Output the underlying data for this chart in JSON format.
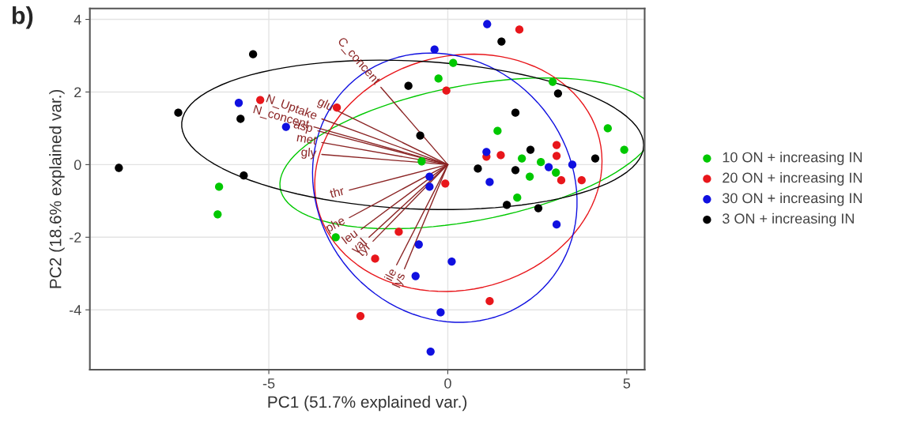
{
  "chart_data": {
    "type": "scatter",
    "title": "b)",
    "xlabel": "PC1 (51.7% explained var.)",
    "ylabel": "PC2 (18.6% explained var.)",
    "xlim": [
      -10,
      5.5
    ],
    "ylim": [
      -5.65,
      4.3
    ],
    "xticks": [
      -5,
      0,
      5
    ],
    "yticks": [
      -4,
      -2,
      0,
      2,
      4
    ],
    "grid": true,
    "legend": "right",
    "marker": "circle",
    "series": [
      {
        "name": "10 ON + increasing IN",
        "color": "#00c800",
        "x": [
          0.15,
          -0.26,
          2.93,
          4.47,
          4.93,
          1.39,
          2.07,
          2.6,
          2.29,
          3.02,
          -0.73,
          -6.39,
          -6.43,
          -3.13,
          1.94
        ],
        "values": [
          2.8,
          2.37,
          2.28,
          1.0,
          0.41,
          0.93,
          0.17,
          0.07,
          -0.33,
          -0.22,
          0.09,
          -0.61,
          -1.37,
          -2.0,
          -0.91
        ]
      },
      {
        "name": "20 ON + increasing IN",
        "color": "#e8161b",
        "x": [
          2.0,
          -0.04,
          -5.24,
          -3.1,
          3.04,
          3.04,
          1.08,
          1.48,
          3.17,
          3.74,
          -0.07,
          -2.03,
          -2.44,
          1.17,
          -1.37
        ],
        "values": [
          3.72,
          2.04,
          1.78,
          1.57,
          0.54,
          0.24,
          0.22,
          0.26,
          -0.43,
          -0.43,
          -0.52,
          -2.59,
          -4.17,
          -3.76,
          -1.85
        ]
      },
      {
        "name": "30 ON + increasing IN",
        "color": "#1010e0",
        "x": [
          1.1,
          -0.37,
          -5.84,
          -4.52,
          1.08,
          2.82,
          3.48,
          -0.51,
          -0.51,
          1.17,
          3.04,
          -0.81,
          0.11,
          -0.9,
          -0.2,
          -0.48
        ],
        "values": [
          3.87,
          3.17,
          1.7,
          1.04,
          0.35,
          -0.07,
          0.0,
          -0.33,
          -0.61,
          -0.48,
          -1.65,
          -2.2,
          -2.67,
          -3.07,
          -4.07,
          -5.15
        ]
      },
      {
        "name": "3 ON + increasing IN",
        "color": "#000000",
        "x": [
          1.5,
          -5.44,
          -7.53,
          -5.79,
          -9.19,
          -5.7,
          -1.1,
          3.08,
          1.89,
          -0.77,
          2.31,
          4.12,
          0.84,
          1.89,
          1.65,
          2.53
        ],
        "values": [
          3.39,
          3.04,
          1.43,
          1.26,
          -0.09,
          -0.3,
          2.17,
          1.96,
          1.43,
          0.8,
          0.41,
          0.17,
          -0.11,
          -0.15,
          -1.11,
          -1.2
        ]
      },
      {
        "type": "line",
        "marker": "none",
        "name": "C_concent",
        "color": "#8b2525",
        "x": [
          0,
          -1.87
        ],
        "values": [
          0,
          2.13
        ]
      },
      {
        "type": "line",
        "marker": "none",
        "name": "glu",
        "color": "#8b2525",
        "x": [
          0,
          -3.08
        ],
        "values": [
          0,
          1.48
        ]
      },
      {
        "type": "line",
        "marker": "none",
        "name": "N_Uptake",
        "color": "#8b2525",
        "x": [
          0,
          -3.52
        ],
        "values": [
          0,
          1.26
        ]
      },
      {
        "type": "line",
        "marker": "none",
        "name": "N_concent",
        "color": "#8b2525",
        "x": [
          0,
          -3.74
        ],
        "values": [
          0,
          1.04
        ]
      },
      {
        "type": "line",
        "marker": "none",
        "name": "asp",
        "color": "#8b2525",
        "x": [
          0,
          -3.63
        ],
        "values": [
          0,
          0.93
        ]
      },
      {
        "type": "line",
        "marker": "none",
        "name": "met",
        "color": "#8b2525",
        "x": [
          0,
          -3.52
        ],
        "values": [
          0,
          0.61
        ]
      },
      {
        "type": "line",
        "marker": "none",
        "name": "gly",
        "color": "#8b2525",
        "x": [
          0,
          -3.52
        ],
        "values": [
          0,
          0.28
        ]
      },
      {
        "type": "line",
        "marker": "none",
        "name": "thr",
        "color": "#8b2525",
        "x": [
          0,
          -2.75
        ],
        "values": [
          0,
          -0.7
        ]
      },
      {
        "type": "line",
        "marker": "none",
        "name": "phe",
        "color": "#8b2525",
        "x": [
          0,
          -2.75
        ],
        "values": [
          0,
          -1.46
        ]
      },
      {
        "type": "line",
        "marker": "none",
        "name": "leu",
        "color": "#8b2525",
        "x": [
          0,
          -2.42
        ],
        "values": [
          0,
          -1.78
        ]
      },
      {
        "type": "line",
        "marker": "none",
        "name": "val",
        "color": "#8b2525",
        "x": [
          0,
          -2.2
        ],
        "values": [
          0,
          -2.0
        ]
      },
      {
        "type": "line",
        "marker": "none",
        "name": "tyr",
        "color": "#8b2525",
        "x": [
          0,
          -2.09
        ],
        "values": [
          0,
          -2.11
        ]
      },
      {
        "type": "line",
        "marker": "none",
        "name": "ile",
        "color": "#8b2525",
        "x": [
          0,
          -1.43
        ],
        "values": [
          0,
          -2.76
        ]
      },
      {
        "type": "line",
        "marker": "none",
        "name": "lys",
        "color": "#8b2525",
        "x": [
          0,
          -1.21
        ],
        "values": [
          0,
          -2.87
        ]
      }
    ]
  }
}
